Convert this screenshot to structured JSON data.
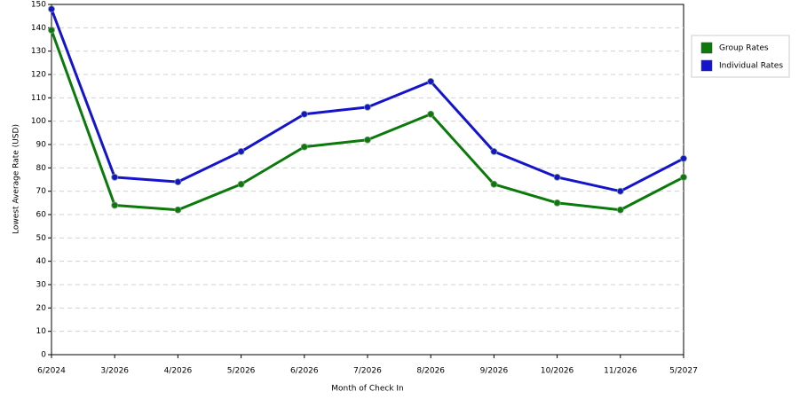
{
  "chart_data": {
    "type": "line",
    "x_label": "Month of Check In",
    "y_label": "Lowest Average Rate (USD)",
    "categories": [
      "6/2024",
      "3/2026",
      "4/2026",
      "5/2026",
      "6/2026",
      "7/2026",
      "8/2026",
      "9/2026",
      "10/2026",
      "11/2026",
      "5/2027"
    ],
    "series": [
      {
        "name": "Group Rates",
        "color": "#0b7a0b",
        "values": [
          139,
          64,
          62,
          73,
          89,
          92,
          103,
          73,
          65,
          62,
          76
        ]
      },
      {
        "name": "Individual Rates",
        "color": "#1414cc",
        "values": [
          148,
          76,
          74,
          87,
          103,
          106,
          117,
          87,
          76,
          70,
          84
        ]
      }
    ],
    "ylim": [
      0,
      150
    ],
    "yticks": [
      0,
      10,
      20,
      30,
      40,
      50,
      60,
      70,
      80,
      90,
      100,
      110,
      120,
      130,
      140,
      150
    ],
    "grid": true,
    "legend": "right"
  }
}
